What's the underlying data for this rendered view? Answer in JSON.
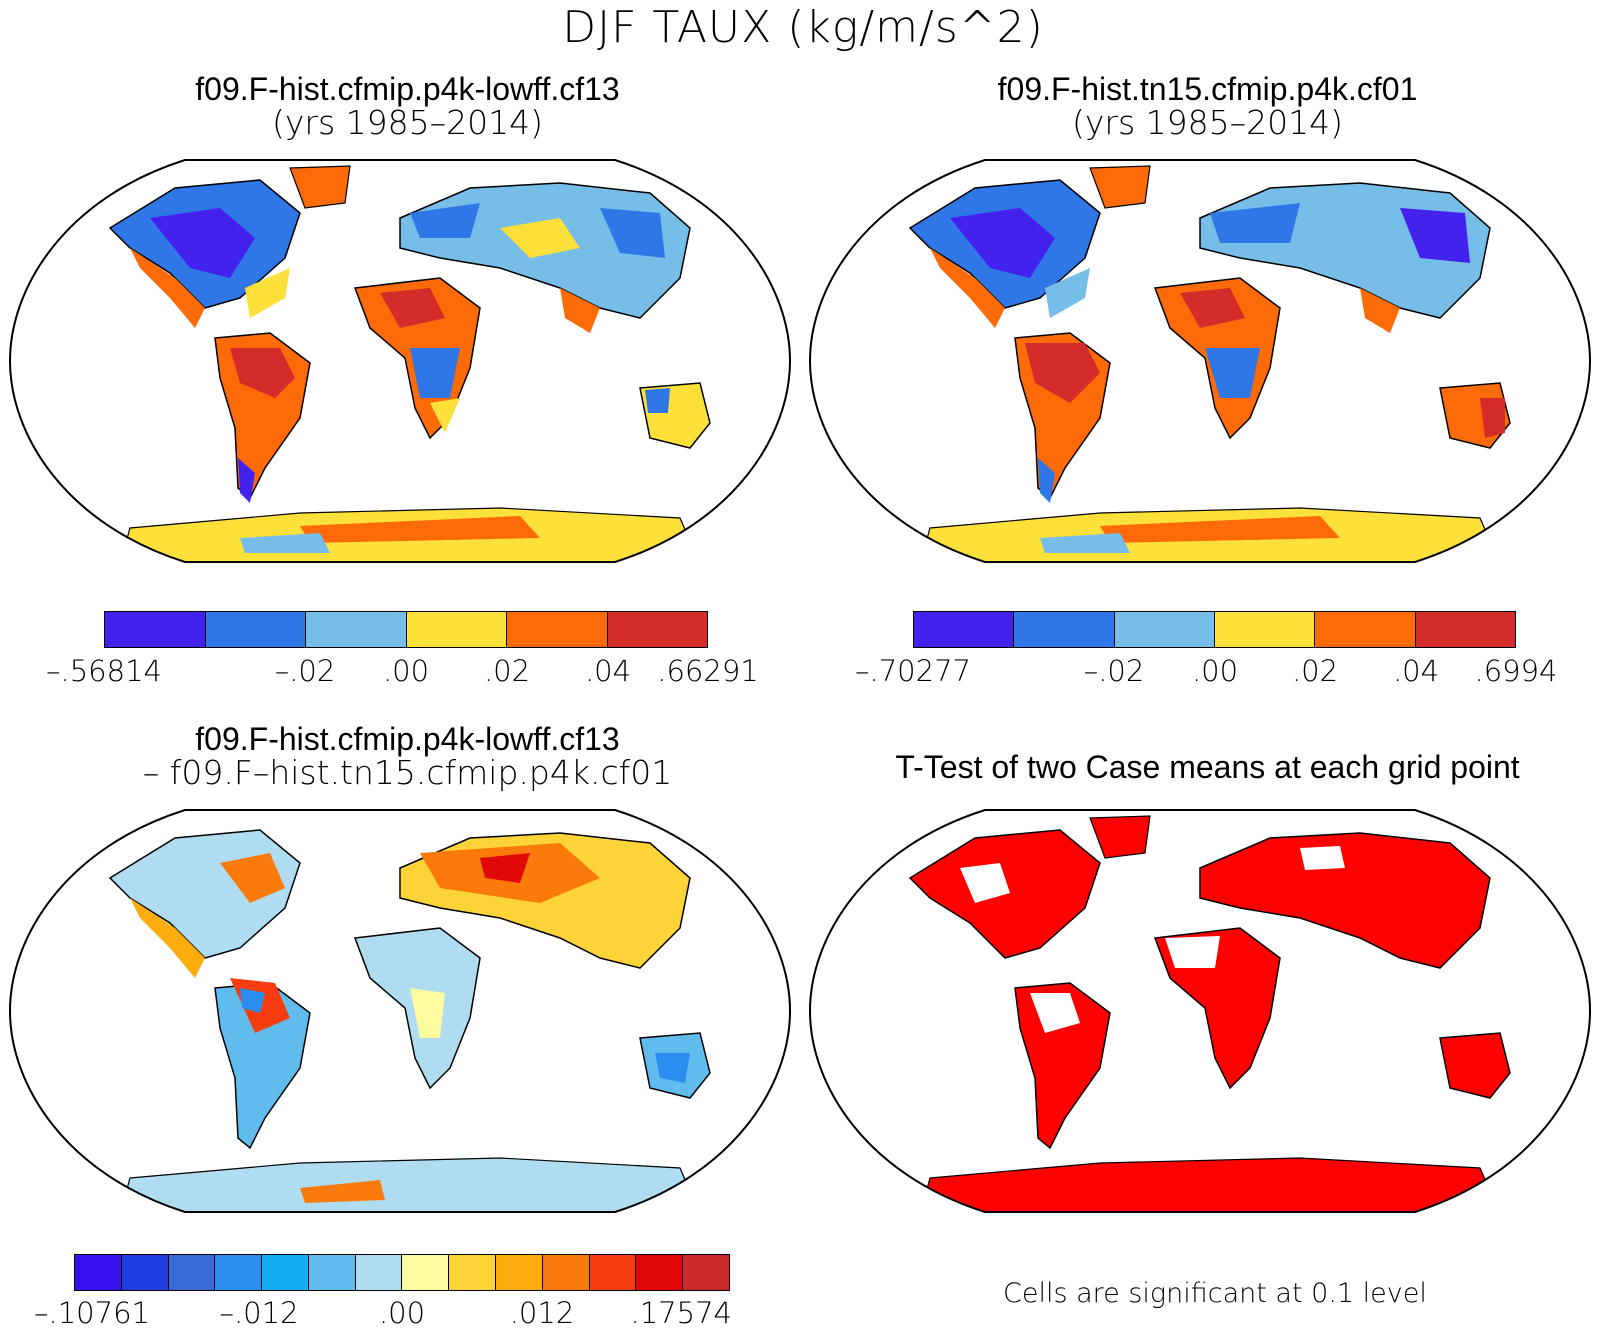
{
  "figure_title": "DJF TAUX (kg/m/s^2)",
  "panels": [
    {
      "title": "f09.F-hist.cfmip.p4k-lowff.cf13",
      "subtitle": "(yrs 1985–2014)"
    },
    {
      "title": "f09.F-hist.tn15.cfmip.p4k.cf01",
      "subtitle": "(yrs 1985–2014)"
    },
    {
      "title": "f09.F-hist.cfmip.p4k-lowff.cf13",
      "subtitle": "– f09.F–hist.tn15.cfmip.p4k.cf01"
    },
    {
      "title": "T-Test of two Case means at each grid point",
      "subtitle": ""
    }
  ],
  "colorbars": [
    {
      "colors": [
        "#4422ee",
        "#2f76e6",
        "#76bde8",
        "#fde03a",
        "#fd6a08",
        "#d42b2b"
      ],
      "labels": [
        "–.56814",
        "–.02",
        ".00",
        ".02",
        ".04",
        ".66291"
      ]
    },
    {
      "colors": [
        "#4422ee",
        "#2f76e6",
        "#76bde8",
        "#fde03a",
        "#fd6a08",
        "#d42b2b"
      ],
      "labels": [
        "–.70277",
        "–.02",
        ".00",
        ".02",
        ".04",
        ".6994"
      ]
    },
    {
      "colors": [
        "#3b10f0",
        "#1f3de0",
        "#3a6ad8",
        "#2a8df0",
        "#12b0f2",
        "#60bcec",
        "#b0dcf2",
        "#fefaa0",
        "#fcd438",
        "#fcac0c",
        "#fb7a0c",
        "#f73c10",
        "#e00808",
        "#cc2a2a"
      ],
      "labels": [
        "–.10761",
        "–.012",
        ".00",
        ".012",
        ".17574"
      ]
    }
  ],
  "footnote": "Cells are significant at 0.1 level"
}
